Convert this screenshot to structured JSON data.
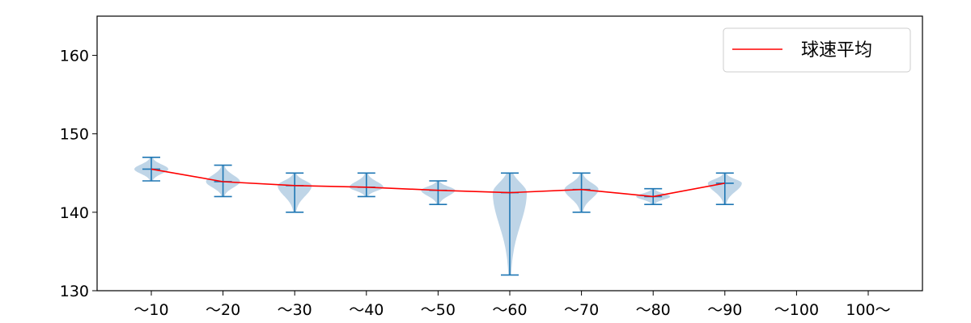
{
  "chart_data": {
    "type": "violin",
    "categories": [
      "〜10",
      "〜20",
      "〜30",
      "〜40",
      "〜50",
      "〜60",
      "〜70",
      "〜80",
      "〜90",
      "〜100",
      "100〜"
    ],
    "y_ticks": [
      130,
      140,
      150,
      160
    ],
    "ylim": [
      130,
      165
    ],
    "grid": false,
    "legend_position": "top-right",
    "violins": [
      {
        "category": "〜10",
        "min": 144,
        "max": 147,
        "mean": 145.5
      },
      {
        "category": "〜20",
        "min": 142,
        "max": 146,
        "mean": 143.9
      },
      {
        "category": "〜30",
        "min": 140,
        "max": 145,
        "mean": 143.4
      },
      {
        "category": "〜40",
        "min": 142,
        "max": 145,
        "mean": 143.2
      },
      {
        "category": "〜50",
        "min": 141,
        "max": 144,
        "mean": 142.8
      },
      {
        "category": "〜60",
        "min": 132,
        "max": 145,
        "mean": 142.5
      },
      {
        "category": "〜70",
        "min": 140,
        "max": 145,
        "mean": 142.9
      },
      {
        "category": "〜80",
        "min": 141,
        "max": 143,
        "mean": 142.0
      },
      {
        "category": "〜90",
        "min": 141,
        "max": 145,
        "mean": 143.7
      }
    ],
    "series": [
      {
        "name": "球速平均",
        "color": "#ff0000",
        "values": [
          145.5,
          143.9,
          143.4,
          143.2,
          142.8,
          142.5,
          142.9,
          142.0,
          143.7
        ]
      }
    ],
    "colors": {
      "violin_fill": "#bcd3e6",
      "violin_line": "#1f77b4",
      "mean_line": "#ff0000"
    }
  }
}
